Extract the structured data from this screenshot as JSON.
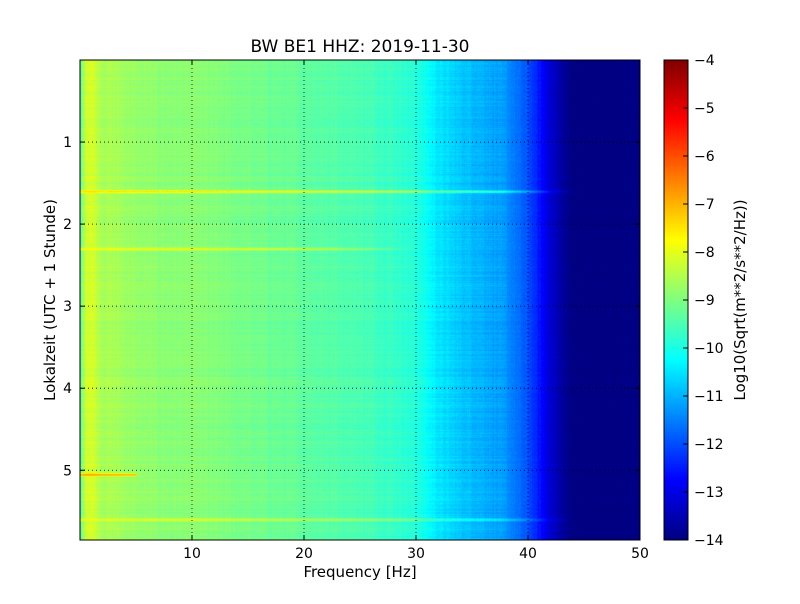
{
  "chart_data": {
    "type": "heatmap",
    "title": "BW BE1 HHZ: 2019-11-30",
    "xlabel": "Frequency [Hz]",
    "ylabel": "Lokalzeit (UTC + 1 Stunde)",
    "colorbar_label": "Log10(Sqrt(m**2/s**2/Hz))",
    "colormap": "jet",
    "xlim": [
      0,
      50
    ],
    "ylim": [
      5.85,
      0
    ],
    "x_ticks": [
      10,
      20,
      30,
      40,
      50
    ],
    "x_tick_labels": [
      "10",
      "20",
      "30",
      "40",
      "50"
    ],
    "y_ticks": [
      1,
      2,
      3,
      4,
      5
    ],
    "y_tick_labels": [
      "1",
      "2",
      "3",
      "4",
      "5"
    ],
    "clim": [
      -14,
      -4
    ],
    "colorbar_ticks": [
      -4,
      -5,
      -6,
      -7,
      -8,
      -9,
      -10,
      -11,
      -12,
      -13,
      -14
    ],
    "colorbar_tick_labels": [
      "−4",
      "−5",
      "−6",
      "−7",
      "−8",
      "−9",
      "−10",
      "−11",
      "−12",
      "−13",
      "−14"
    ],
    "grid": true,
    "frequency_profile": {
      "frequency_hz": [
        0,
        0.5,
        1,
        1.5,
        2,
        3,
        5,
        8,
        10,
        15,
        20,
        25,
        28,
        30,
        32,
        34,
        36,
        38,
        40,
        41,
        42,
        43,
        44,
        45,
        50
      ],
      "log10_asd": [
        -9.3,
        -8.2,
        -8.1,
        -8.4,
        -8.6,
        -8.6,
        -8.8,
        -8.9,
        -8.9,
        -9.1,
        -9.3,
        -9.5,
        -9.7,
        -9.9,
        -10.5,
        -10.8,
        -11.0,
        -11.3,
        -12.0,
        -12.6,
        -13.2,
        -13.7,
        -14.0,
        -14.0,
        -14.0
      ]
    },
    "time_features": [
      {
        "time_h": 1.6,
        "log10_asd": -7.8,
        "fmax_hz": 45
      },
      {
        "time_h": 2.3,
        "log10_asd": -8.2,
        "fmax_hz": 30
      },
      {
        "time_h": 5.05,
        "log10_asd": -6.8,
        "fmax_hz": 5
      },
      {
        "time_h": 5.6,
        "log10_asd": -8.3,
        "fmax_hz": 45
      }
    ]
  }
}
